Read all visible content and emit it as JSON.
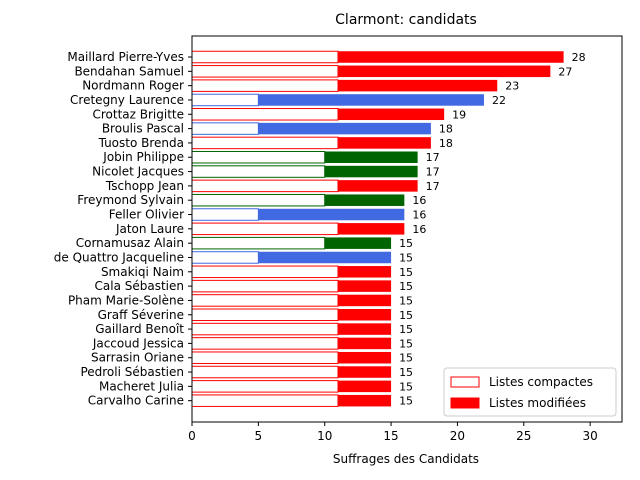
{
  "chart_data": {
    "type": "bar",
    "orientation": "horizontal",
    "stacked": true,
    "title": "Clarmont: candidats",
    "xlabel": "Suffrages des Candidats",
    "ylabel": "",
    "xlim": [
      0,
      32.4
    ],
    "xticks": [
      0,
      5,
      10,
      15,
      20,
      25,
      30
    ],
    "legend": {
      "position": "bottom-right",
      "entries": [
        {
          "label": "Listes compactes",
          "style": "outline",
          "color": "#ff0000"
        },
        {
          "label": "Listes modifiées",
          "style": "filled",
          "color": "#ff0000"
        }
      ]
    },
    "categories": [
      "Maillard Pierre-Yves",
      "Bendahan Samuel",
      "Nordmann Roger",
      "Cretegny Laurence",
      "Crottaz Brigitte",
      "Broulis Pascal",
      "Tuosto Brenda",
      "Jobin Philippe",
      "Nicolet Jacques",
      "Tschopp Jean",
      "Freymond Sylvain",
      "Feller Olivier",
      "Jaton Laure",
      "Cornamusaz Alain",
      "de Quattro Jacqueline",
      "Smakiqi Naim",
      "Cala Sébastien",
      "Pham Marie-Solène",
      "Graff Séverine",
      "Gaillard Benoît",
      "Jaccoud Jessica",
      "Sarrasin Oriane",
      "Pedroli Sébastien",
      "Macheret Julia",
      "Carvalho Carine"
    ],
    "colors": [
      "#ff0000",
      "#ff0000",
      "#ff0000",
      "#4169e1",
      "#ff0000",
      "#4169e1",
      "#ff0000",
      "#006400",
      "#006400",
      "#ff0000",
      "#006400",
      "#4169e1",
      "#ff0000",
      "#006400",
      "#4169e1",
      "#ff0000",
      "#ff0000",
      "#ff0000",
      "#ff0000",
      "#ff0000",
      "#ff0000",
      "#ff0000",
      "#ff0000",
      "#ff0000",
      "#ff0000"
    ],
    "series": [
      {
        "name": "Listes compactes",
        "values": [
          11,
          11,
          11,
          5,
          11,
          5,
          11,
          10,
          10,
          11,
          10,
          5,
          11,
          10,
          5,
          11,
          11,
          11,
          11,
          11,
          11,
          11,
          11,
          11,
          11
        ]
      },
      {
        "name": "Listes modifiées",
        "values": [
          17,
          16,
          12,
          17,
          8,
          13,
          7,
          7,
          7,
          6,
          6,
          11,
          5,
          5,
          10,
          4,
          4,
          4,
          4,
          4,
          4,
          4,
          4,
          4,
          4
        ]
      }
    ],
    "totals": [
      28,
      27,
      23,
      22,
      19,
      18,
      18,
      17,
      17,
      17,
      16,
      16,
      16,
      15,
      15,
      15,
      15,
      15,
      15,
      15,
      15,
      15,
      15,
      15,
      15
    ]
  }
}
